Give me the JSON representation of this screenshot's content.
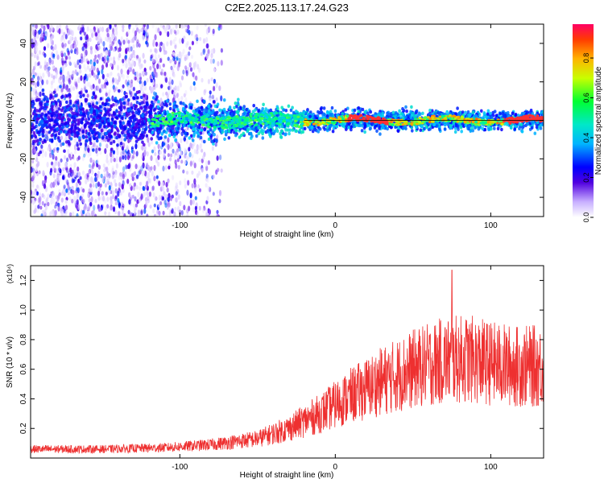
{
  "page": {
    "title": "C2E2.2025.113.17.24.G23"
  },
  "chart_data": [
    {
      "type": "heatmap",
      "xlabel": "Height of straight line (km)",
      "ylabel": "Frequency (Hz)",
      "xlim": [
        -196,
        134
      ],
      "ylim": [
        -50,
        50
      ],
      "x_ticks": [
        -100,
        0,
        100
      ],
      "y_ticks": [
        -40,
        -20,
        0,
        20,
        40
      ],
      "colorbar": {
        "label": "Normalized spectral amplitude",
        "range": [
          0.0,
          0.97
        ],
        "ticks": [
          0.0,
          0.2,
          0.4,
          0.6,
          0.8
        ],
        "colors": [
          "#e8e0ff",
          "#5000e0",
          "#0000ff",
          "#00c8ff",
          "#00ff64",
          "#e6ff00",
          "#ff8c00",
          "#ff0050"
        ]
      },
      "features": [
        {
          "x_range": [
            -196,
            -118
          ],
          "description_value": 0.18,
          "freq_band": [
            -50,
            50
          ]
        },
        {
          "x_range": [
            -118,
            -20
          ],
          "description_value": 0.25,
          "freq_band": [
            -10,
            8
          ]
        },
        {
          "x_range": [
            -20,
            134
          ],
          "description_value": 0.9,
          "freq_band": [
            -1,
            1
          ]
        }
      ],
      "grid": false
    },
    {
      "type": "line",
      "xlabel": "Height of straight line (km)",
      "ylabel": "SNR (10 * v/v)",
      "y_multiplier": "(x10⁴)",
      "xlim": [
        -196,
        134
      ],
      "ylim": [
        0.0,
        1.3
      ],
      "x_ticks": [
        -100,
        0,
        100
      ],
      "y_ticks": [
        0.2,
        0.4,
        0.6,
        0.8,
        1.0,
        1.2
      ],
      "series": [
        {
          "color": "#ee3030",
          "trend": [
            {
              "x": -196,
              "y": 0.06
            },
            {
              "x": -150,
              "y": 0.06
            },
            {
              "x": -110,
              "y": 0.07
            },
            {
              "x": -80,
              "y": 0.09
            },
            {
              "x": -50,
              "y": 0.13
            },
            {
              "x": -30,
              "y": 0.2
            },
            {
              "x": -10,
              "y": 0.3
            },
            {
              "x": 10,
              "y": 0.42
            },
            {
              "x": 30,
              "y": 0.52
            },
            {
              "x": 50,
              "y": 0.6
            },
            {
              "x": 70,
              "y": 0.66
            },
            {
              "x": 85,
              "y": 0.67
            },
            {
              "x": 100,
              "y": 0.64
            },
            {
              "x": 115,
              "y": 0.62
            },
            {
              "x": 134,
              "y": 0.62
            }
          ],
          "peak": {
            "x": 75,
            "y": 1.27
          }
        }
      ],
      "grid": false
    }
  ]
}
